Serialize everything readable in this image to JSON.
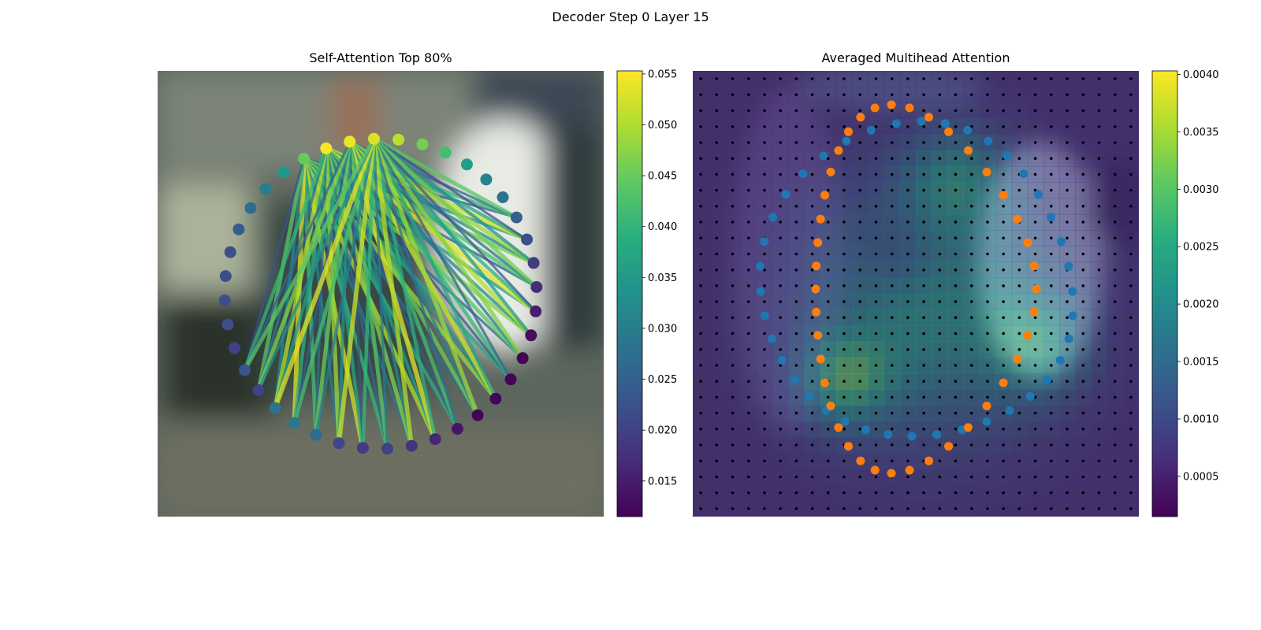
{
  "figure": {
    "title": "Decoder Step 0 Layer 15"
  },
  "chart_data": [
    {
      "type": "scatter",
      "panel": "left",
      "title": "Self-Attention Top 80%",
      "description_of_marks": "ring of 40 points colored by attention; attention lines from the highlighted query points",
      "colorbar": {
        "colormap": "viridis",
        "range": [
          0.0115,
          0.0553
        ],
        "ticks": [
          "0.015",
          "0.020",
          "0.025",
          "0.030",
          "0.035",
          "0.040",
          "0.045",
          "0.050",
          "0.055"
        ],
        "tick_values": [
          0.015,
          0.02,
          0.025,
          0.03,
          0.035,
          0.04,
          0.045,
          0.05,
          0.055
        ]
      },
      "ring_point_attention": [
        0.054,
        0.053,
        0.051,
        0.046,
        0.042,
        0.036,
        0.031,
        0.028,
        0.025,
        0.022,
        0.019,
        0.017,
        0.015,
        0.013,
        0.012,
        0.012,
        0.012,
        0.012,
        0.014,
        0.016,
        0.018,
        0.02,
        0.019,
        0.021,
        0.027,
        0.029,
        0.028,
        0.02,
        0.023,
        0.02,
        0.022,
        0.022,
        0.022,
        0.022,
        0.024,
        0.027,
        0.03,
        0.035,
        0.045,
        0.055
      ]
    },
    {
      "type": "heatmap",
      "panel": "right",
      "title": "Averaged Multihead Attention",
      "grid": {
        "rows": 28,
        "cols": 28,
        "point_markers": "black dot at each cell center"
      },
      "overlay_series": [
        {
          "color": "#1f77b4",
          "marker": "outer ring points (40)"
        },
        {
          "color": "#ff7f0e",
          "marker": "inner ring points (40)"
        }
      ],
      "colorbar": {
        "colormap": "viridis",
        "range": [
          0.00015,
          0.00403
        ],
        "ticks": [
          "0.0005",
          "0.0010",
          "0.0015",
          "0.0020",
          "0.0025",
          "0.0030",
          "0.0035",
          "0.0040"
        ],
        "tick_values": [
          0.0005,
          0.001,
          0.0015,
          0.002,
          0.0025,
          0.003,
          0.0035,
          0.004
        ]
      }
    }
  ]
}
